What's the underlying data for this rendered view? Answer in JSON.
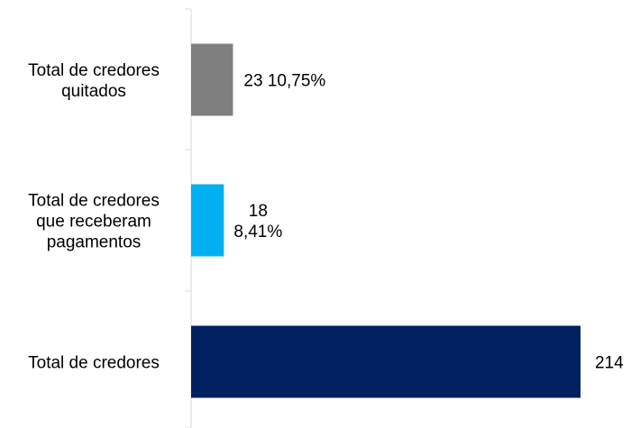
{
  "chart_data": {
    "type": "bar",
    "orientation": "horizontal",
    "categories": [
      [
        "Total de credores",
        "quitados"
      ],
      [
        "Total de credores",
        "que receberam",
        "pagamentos"
      ],
      [
        "Total de credores"
      ]
    ],
    "values": [
      23,
      18,
      214
    ],
    "data_labels": [
      [
        "23  10,75%"
      ],
      [
        "18",
        "8,41%"
      ],
      [
        "214"
      ]
    ],
    "colors": [
      "#7f7f7f",
      "#00b0f0",
      "#002060"
    ],
    "xlim": [
      0,
      214
    ],
    "title": "",
    "xlabel": "",
    "ylabel": "",
    "grid": false,
    "legend": "none"
  }
}
